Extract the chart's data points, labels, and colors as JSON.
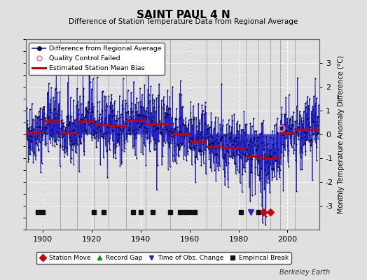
{
  "title": "SAINT PAUL 4 N",
  "subtitle": "Difference of Station Temperature Data from Regional Average",
  "ylabel": "Monthly Temperature Anomaly Difference (°C)",
  "xlim": [
    1893,
    2013
  ],
  "ylim": [
    -4,
    4
  ],
  "yticks": [
    -3,
    -2,
    -1,
    0,
    1,
    2,
    3
  ],
  "xticks": [
    1900,
    1920,
    1940,
    1960,
    1980,
    2000
  ],
  "bg_color": "#e0e0e0",
  "plot_bg_color": "#e0e0e0",
  "grid_color": "#ffffff",
  "random_seed": 42,
  "bias_segments": [
    {
      "x_start": 1893,
      "x_end": 1900,
      "bias": 0.1
    },
    {
      "x_start": 1900,
      "x_end": 1907,
      "bias": 0.55
    },
    {
      "x_start": 1907,
      "x_end": 1914,
      "bias": 0.05
    },
    {
      "x_start": 1914,
      "x_end": 1921,
      "bias": 0.55
    },
    {
      "x_start": 1921,
      "x_end": 1927,
      "bias": 0.4
    },
    {
      "x_start": 1927,
      "x_end": 1934,
      "bias": 0.35
    },
    {
      "x_start": 1934,
      "x_end": 1942,
      "bias": 0.6
    },
    {
      "x_start": 1942,
      "x_end": 1952,
      "bias": 0.45
    },
    {
      "x_start": 1952,
      "x_end": 1960,
      "bias": 0.0
    },
    {
      "x_start": 1960,
      "x_end": 1967,
      "bias": -0.3
    },
    {
      "x_start": 1967,
      "x_end": 1973,
      "bias": -0.5
    },
    {
      "x_start": 1973,
      "x_end": 1983,
      "bias": -0.55
    },
    {
      "x_start": 1983,
      "x_end": 1988,
      "bias": -0.9
    },
    {
      "x_start": 1988,
      "x_end": 1993,
      "bias": -1.0
    },
    {
      "x_start": 1993,
      "x_end": 1997,
      "bias": -1.0
    },
    {
      "x_start": 1997,
      "x_end": 2003,
      "bias": 0.05
    },
    {
      "x_start": 2003,
      "x_end": 2013,
      "bias": 0.2
    }
  ],
  "vertical_lines": [
    1900,
    1907,
    1914,
    1921,
    1927,
    1934,
    1942,
    1952,
    1960,
    1967,
    1973,
    1983,
    1988,
    1993,
    1997,
    2003
  ],
  "empirical_breaks": [
    1898,
    1900,
    1921,
    1925,
    1937,
    1940,
    1945,
    1952,
    1956,
    1958,
    1960,
    1962,
    1981,
    1988
  ],
  "station_moves": [
    1990,
    1993
  ],
  "time_obs_changes": [
    1985
  ],
  "record_gaps": [],
  "qc_failed_year": 1997.5,
  "qc_failed_val": 0.25,
  "berkeley_earth_text": "Berkeley Earth",
  "line_color": "#2222cc",
  "bias_color": "#cc0000",
  "marker_color": "#000000",
  "eb_color": "#111111",
  "sm_color": "#cc0000",
  "toc_color": "#2222cc",
  "rg_color": "#009900",
  "marker_y": -3.25
}
